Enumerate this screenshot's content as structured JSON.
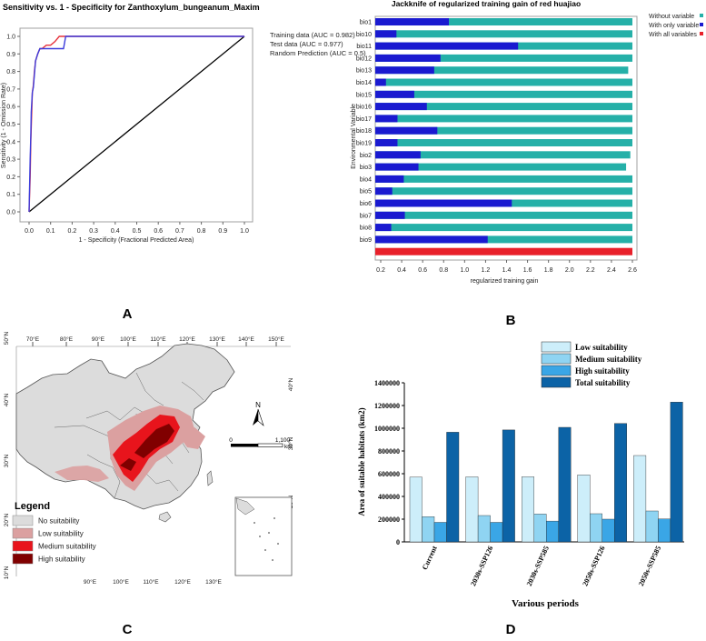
{
  "panels": {
    "a": "A",
    "b": "B",
    "c": "C",
    "d": "D"
  },
  "chart_data": [
    {
      "type": "line",
      "title": "Sensitivity vs. 1 - Specificity for Zanthoxylum_bungeanum_Maxim",
      "xlabel": "1 - Specificity  (Fractional Predicted Area)",
      "ylabel": "Sensitivity  (1 - Omission Rate)",
      "xlim": [
        0,
        1
      ],
      "ylim": [
        0,
        1
      ],
      "xticks": [
        "0.0",
        "0.1",
        "0.2",
        "0.3",
        "0.4",
        "0.5",
        "0.6",
        "0.7",
        "0.8",
        "0.9",
        "1.0"
      ],
      "yticks": [
        "0.0",
        "0.1",
        "0.2",
        "0.3",
        "0.4",
        "0.5",
        "0.6",
        "0.7",
        "0.8",
        "0.9",
        "1.0"
      ],
      "legend": [
        "Training data (AUC = 0.982)",
        "Test data (AUC = 0.977)",
        "Random Prediction (AUC = 0.5)"
      ],
      "series": [
        {
          "name": "Training data (AUC = 0.982)",
          "color": "#e6323c",
          "x": [
            0,
            0.005,
            0.008,
            0.012,
            0.015,
            0.02,
            0.025,
            0.03,
            0.04,
            0.05,
            0.06,
            0.08,
            0.1,
            0.12,
            0.14,
            0.16,
            0.2,
            0.4,
            0.6,
            0.8,
            1.0
          ],
          "y": [
            0,
            0.2,
            0.4,
            0.55,
            0.68,
            0.72,
            0.8,
            0.86,
            0.9,
            0.93,
            0.93,
            0.95,
            0.95,
            0.97,
            1.0,
            1.0,
            1.0,
            1.0,
            1.0,
            1.0,
            1.0
          ]
        },
        {
          "name": "Test data (AUC = 0.977)",
          "color": "#3c3cdc",
          "x": [
            0,
            0.005,
            0.008,
            0.01,
            0.015,
            0.02,
            0.03,
            0.04,
            0.05,
            0.06,
            0.1,
            0.14,
            0.16,
            0.17,
            0.2,
            0.4,
            0.6,
            0.8,
            1.0
          ],
          "y": [
            0,
            0.3,
            0.43,
            0.57,
            0.68,
            0.71,
            0.86,
            0.9,
            0.93,
            0.93,
            0.93,
            0.93,
            0.93,
            1.0,
            1.0,
            1.0,
            1.0,
            1.0,
            1.0
          ]
        },
        {
          "name": "Random Prediction (AUC = 0.5)",
          "color": "#000000",
          "x": [
            0,
            1
          ],
          "y": [
            0,
            1
          ]
        }
      ]
    },
    {
      "type": "bar",
      "title": "Jackknife of regularized training gain of red huajiao",
      "xlabel": "regularized training gain",
      "ylabel": "Environmental Variable",
      "xlim": [
        0.1,
        2.65
      ],
      "xticks": [
        "0.2",
        "0.4",
        "0.6",
        "0.8",
        "1.0",
        "1.2",
        "1.4",
        "1.6",
        "1.8",
        "2.0",
        "2.2",
        "2.4",
        "2.6"
      ],
      "legend_placement": "top-right",
      "series_names": [
        "Without variable",
        "With only variable",
        "With all variables"
      ],
      "colors": {
        "without": "#25b0a8",
        "only": "#1a1ad0",
        "all": "#e8202a"
      },
      "categories": [
        "bio1",
        "bio10",
        "bio11",
        "bio12",
        "bio13",
        "bio14",
        "bio15",
        "bio16",
        "bio17",
        "bio18",
        "bio19",
        "bio2",
        "bio3",
        "bio4",
        "bio5",
        "bio6",
        "bio7",
        "bio8",
        "bio9"
      ],
      "without": [
        2.6,
        2.6,
        2.6,
        2.6,
        2.56,
        2.6,
        2.6,
        2.6,
        2.6,
        2.6,
        2.6,
        2.58,
        2.54,
        2.6,
        2.6,
        2.6,
        2.6,
        2.6,
        2.6
      ],
      "only": [
        0.85,
        0.35,
        1.51,
        0.77,
        0.71,
        0.25,
        0.52,
        0.64,
        0.36,
        0.74,
        0.36,
        0.58,
        0.56,
        0.42,
        0.31,
        1.45,
        0.43,
        0.3,
        1.22
      ],
      "all": 2.6
    },
    {
      "type": "other",
      "subtype": "map",
      "top_ticks": [
        "70°E",
        "80°E",
        "90°E",
        "100°E",
        "110°E",
        "120°E",
        "130°E",
        "140°E",
        "150°E"
      ],
      "bottom_ticks": [
        "90°E",
        "100°E",
        "110°E",
        "120°E",
        "130°E"
      ],
      "left_ticks": [
        "50°N",
        "40°N",
        "30°N",
        "20°N",
        "10°N"
      ],
      "right_ticks": [
        "40°N",
        "30°N",
        "20°N"
      ],
      "north_label": "N",
      "scale_labels": [
        "0",
        "1,100",
        "km"
      ],
      "legend_title": "Legend",
      "legend": [
        {
          "label": "No suitability",
          "color": "#dcdcdc"
        },
        {
          "label": "Low suitability",
          "color": "#dba0a0"
        },
        {
          "label": "Medium suitability",
          "color": "#e8141c"
        },
        {
          "label": "High suitability",
          "color": "#800000"
        }
      ]
    },
    {
      "type": "bar",
      "xlabel": "Various periods",
      "ylabel": "Area of suitable habitats (km2)",
      "ylim": [
        0,
        1400000
      ],
      "yticks": [
        "0",
        "200000",
        "400000",
        "600000",
        "800000",
        "1000000",
        "1200000",
        "1400000"
      ],
      "categories": [
        "Current",
        "2030s-SSP126",
        "2030s-SSP585",
        "2050s-SSP126",
        "2050s-SSP585"
      ],
      "legend_placement": "top-right",
      "series": [
        {
          "name": "Low suitability",
          "color": "#cdeefa",
          "values": [
            570000,
            572000,
            573000,
            590000,
            760000
          ]
        },
        {
          "name": "Medium suitability",
          "color": "#8fd4f2",
          "values": [
            222000,
            232000,
            245000,
            248000,
            272000
          ]
        },
        {
          "name": "High suitability",
          "color": "#3aa6e6",
          "values": [
            172000,
            172000,
            183000,
            200000,
            202000
          ]
        },
        {
          "name": "Total suitability",
          "color": "#0c63a6",
          "values": [
            965000,
            985000,
            1008000,
            1042000,
            1230000
          ]
        }
      ]
    }
  ]
}
